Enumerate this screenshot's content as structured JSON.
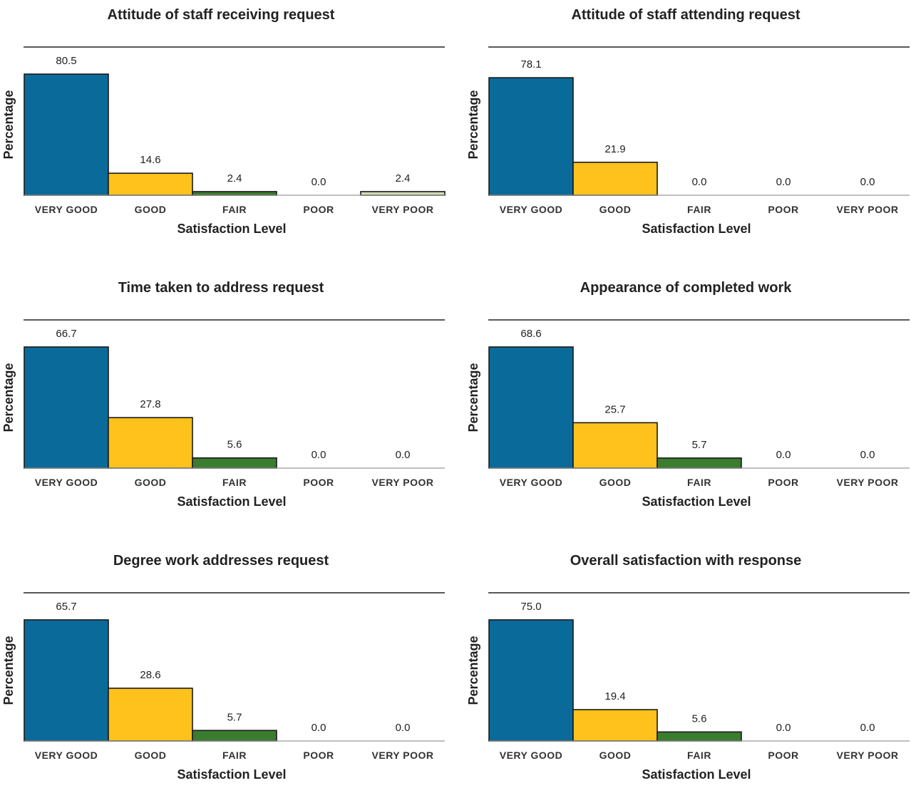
{
  "chart_data": [
    {
      "type": "bar",
      "title": "Attitude of staff receiving request",
      "xlabel": "Satisfaction Level",
      "ylabel": "Percentage",
      "categories": [
        "VERY GOOD",
        "GOOD",
        "FAIR",
        "POOR",
        "VERY POOR"
      ],
      "values": [
        80.5,
        14.6,
        2.4,
        0.0,
        2.4
      ],
      "value_labels": [
        "80.5",
        "14.6",
        "2.4",
        "0.0",
        "2.4"
      ],
      "colors": [
        "#0a6b9a",
        "#ffc21c",
        "#3a7d2e",
        "#e8e8e8",
        "#cfdcb4"
      ],
      "ylim": [
        0,
        80.5
      ],
      "grid": false
    },
    {
      "type": "bar",
      "title": "Attitude of staff attending request",
      "xlabel": "Satisfaction Level",
      "ylabel": "Percentage",
      "categories": [
        "VERY GOOD",
        "GOOD",
        "FAIR",
        "POOR",
        "VERY POOR"
      ],
      "values": [
        78.1,
        21.9,
        0.0,
        0.0,
        0.0
      ],
      "value_labels": [
        "78.1",
        "21.9",
        "0.0",
        "0.0",
        "0.0"
      ],
      "colors": [
        "#0a6b9a",
        "#ffc21c",
        "#3a7d2e",
        "#e8e8e8",
        "#cfdcb4"
      ],
      "ylim": [
        0,
        80.5
      ],
      "grid": false
    },
    {
      "type": "bar",
      "title": "Time taken to address request",
      "xlabel": "Satisfaction Level",
      "ylabel": "Percentage",
      "categories": [
        "VERY GOOD",
        "GOOD",
        "FAIR",
        "POOR",
        "VERY POOR"
      ],
      "values": [
        66.7,
        27.8,
        5.6,
        0.0,
        0.0
      ],
      "value_labels": [
        "66.7",
        "27.8",
        "5.6",
        "0.0",
        "0.0"
      ],
      "colors": [
        "#0a6b9a",
        "#ffc21c",
        "#3a7d2e",
        "#e8e8e8",
        "#cfdcb4"
      ],
      "ylim": [
        0,
        66.7
      ],
      "grid": false
    },
    {
      "type": "bar",
      "title": "Appearance of completed work",
      "xlabel": "Satisfaction Level",
      "ylabel": "Percentage",
      "categories": [
        "VERY GOOD",
        "GOOD",
        "FAIR",
        "POOR",
        "VERY POOR"
      ],
      "values": [
        68.6,
        25.7,
        5.7,
        0.0,
        0.0
      ],
      "value_labels": [
        "68.6",
        "25.7",
        "5.7",
        "0.0",
        "0.0"
      ],
      "colors": [
        "#0a6b9a",
        "#ffc21c",
        "#3a7d2e",
        "#e8e8e8",
        "#cfdcb4"
      ],
      "ylim": [
        0,
        68.6
      ],
      "grid": false
    },
    {
      "type": "bar",
      "title": "Degree work addresses request",
      "xlabel": "Satisfaction Level",
      "ylabel": "Percentage",
      "categories": [
        "VERY GOOD",
        "GOOD",
        "FAIR",
        "POOR",
        "VERY POOR"
      ],
      "values": [
        65.7,
        28.6,
        5.7,
        0.0,
        0.0
      ],
      "value_labels": [
        "65.7",
        "28.6",
        "5.7",
        "0.0",
        "0.0"
      ],
      "colors": [
        "#0a6b9a",
        "#ffc21c",
        "#3a7d2e",
        "#e8e8e8",
        "#cfdcb4"
      ],
      "ylim": [
        0,
        65.7
      ],
      "grid": false
    },
    {
      "type": "bar",
      "title": "Overall satisfaction with response",
      "xlabel": "Satisfaction Level",
      "ylabel": "Percentage",
      "categories": [
        "VERY GOOD",
        "GOOD",
        "FAIR",
        "POOR",
        "VERY POOR"
      ],
      "values": [
        75.0,
        19.4,
        5.6,
        0.0,
        0.0
      ],
      "value_labels": [
        "75.0",
        "19.4",
        "5.6",
        "0.0",
        "0.0"
      ],
      "colors": [
        "#0a6b9a",
        "#ffc21c",
        "#3a7d2e",
        "#e8e8e8",
        "#cfdcb4"
      ],
      "ylim": [
        0,
        75.0
      ],
      "grid": false
    }
  ]
}
